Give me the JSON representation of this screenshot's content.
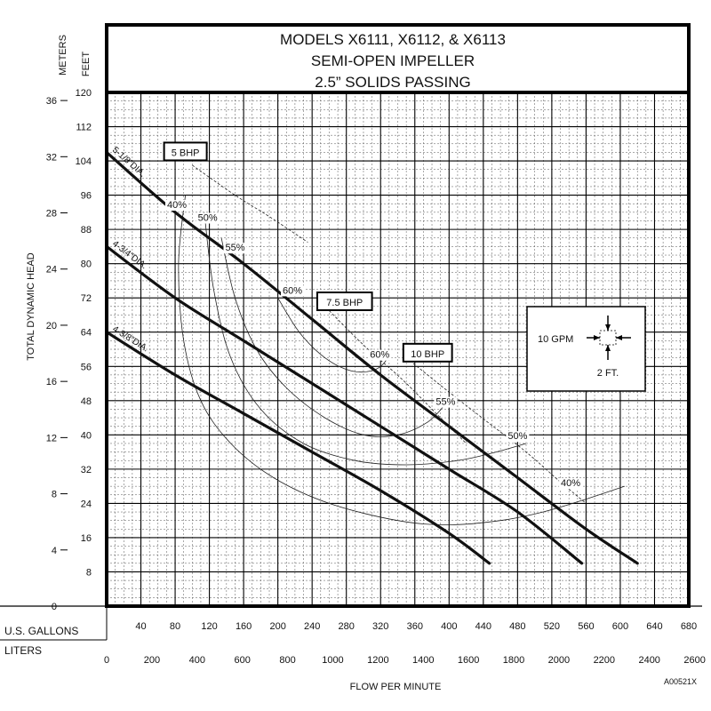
{
  "chart_data": {
    "type": "line",
    "title": [
      "MODELS X6111, X6112, & X6113",
      "SEMI-OPEN IMPELLER",
      "2.5” SOLIDS PASSING"
    ],
    "xlabel": "FLOW PER MINUTE",
    "ylabel": "TOTAL DYNAMIC HEAD",
    "y_unit_feet": "FEET",
    "y_unit_meters": "METERS",
    "x_unit_gallons": "U.S. GALLONS",
    "x_unit_liters": "LITERS",
    "figure_code": "A00521X",
    "xlim_gpm": [
      0,
      680
    ],
    "ylim_feet": [
      0,
      120
    ],
    "grid": true,
    "feet_ticks": [
      8,
      16,
      24,
      32,
      40,
      48,
      56,
      64,
      72,
      80,
      88,
      96,
      104,
      112,
      120
    ],
    "meter_ticks": [
      0,
      4,
      8,
      12,
      16,
      20,
      24,
      28,
      32,
      36
    ],
    "gallon_ticks": [
      40,
      80,
      120,
      160,
      200,
      240,
      280,
      320,
      360,
      400,
      440,
      480,
      520,
      560,
      600,
      640,
      680
    ],
    "liter_ticks": [
      0,
      200,
      400,
      600,
      800,
      1000,
      1200,
      1400,
      1600,
      1800,
      2000,
      2200,
      2400,
      2600
    ],
    "series": [
      {
        "name": "5-1/8”DIA.",
        "x": [
          0,
          80,
          160,
          240,
          320,
          400,
          480,
          560,
          620
        ],
        "y": [
          106,
          92,
          80,
          67,
          54,
          42,
          30,
          18,
          10
        ]
      },
      {
        "name": "4-3/4”DIA.",
        "x": [
          0,
          80,
          160,
          240,
          320,
          400,
          480,
          555
        ],
        "y": [
          84,
          72,
          62,
          52,
          42,
          32,
          22,
          10
        ]
      },
      {
        "name": "4-3/8”DIA.",
        "x": [
          0,
          80,
          160,
          240,
          320,
          400,
          447
        ],
        "y": [
          64,
          54,
          45,
          36,
          27,
          17,
          10
        ]
      }
    ],
    "efficiency_curves": [
      {
        "label": "40%",
        "x": [
          92,
          84,
          90,
          110,
          145,
          195,
          260,
          340,
          400,
          460,
          510,
          560,
          605
        ],
        "y": [
          96,
          80,
          62,
          48,
          38,
          30,
          24,
          20,
          19,
          20,
          22,
          25,
          28
        ]
      },
      {
        "label": "50%",
        "x": [
          114,
          125,
          145,
          180,
          230,
          290,
          350,
          410,
          455,
          490
        ],
        "y": [
          92,
          74,
          58,
          46,
          38,
          34,
          33,
          34,
          36,
          38
        ]
      },
      {
        "label": "55%",
        "x": [
          134,
          150,
          175,
          210,
          255,
          300,
          340,
          375,
          395
        ],
        "y": [
          86,
          72,
          60,
          51,
          44,
          40,
          40,
          43,
          47
        ]
      },
      {
        "label": "60%",
        "x": [
          200,
          225,
          255,
          285,
          310,
          325,
          330
        ],
        "y": [
          72,
          64,
          58,
          55,
          55,
          57,
          60
        ]
      }
    ],
    "efficiency_labels": [
      {
        "text": "40%",
        "x": 82,
        "y": 93
      },
      {
        "text": "50%",
        "x": 118,
        "y": 90
      },
      {
        "text": "55%",
        "x": 150,
        "y": 83
      },
      {
        "text": "60%",
        "x": 217,
        "y": 73
      },
      {
        "text": "60%",
        "x": 319,
        "y": 58
      },
      {
        "text": "55%",
        "x": 396,
        "y": 47
      },
      {
        "text": "50%",
        "x": 480,
        "y": 39
      },
      {
        "text": "40%",
        "x": 542,
        "y": 28
      }
    ],
    "bhp_lines": [
      {
        "label": "5 BHP",
        "x": [
          100,
          150,
          190,
          235
        ],
        "y": [
          103,
          96,
          91,
          85
        ]
      },
      {
        "label": "7.5 BHP",
        "x": [
          260,
          300,
          345,
          385,
          420
        ],
        "y": [
          69,
          61,
          53,
          45,
          38
        ]
      },
      {
        "label": "10 BHP",
        "x": [
          350,
          400,
          445,
          490,
          530,
          560
        ],
        "y": [
          58,
          50,
          43,
          36,
          29,
          24
        ]
      }
    ],
    "bhp_labels": [
      {
        "text": "5 BHP",
        "x": 92,
        "y": 106
      },
      {
        "text": "7.5 BHP",
        "x": 278,
        "y": 71
      },
      {
        "text": "10 BHP",
        "x": 375,
        "y": 59
      }
    ],
    "scale_legend": {
      "gpm": "10 GPM",
      "feet": "2 FT."
    }
  }
}
